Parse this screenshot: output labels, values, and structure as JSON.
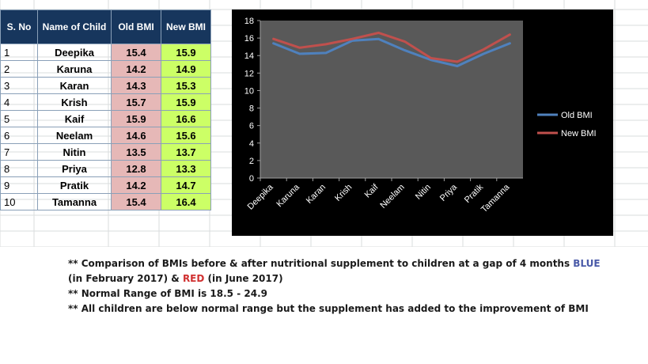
{
  "table": {
    "headers": [
      "S. No",
      "Name of Child",
      "Old BMI",
      "New BMI"
    ],
    "rows": [
      {
        "sno": "1",
        "name": "Deepika",
        "old": "15.4",
        "new": "15.9"
      },
      {
        "sno": "2",
        "name": "Karuna",
        "old": "14.2",
        "new": "14.9"
      },
      {
        "sno": "3",
        "name": "Karan",
        "old": "14.3",
        "new": "15.3"
      },
      {
        "sno": "4",
        "name": "Krish",
        "old": "15.7",
        "new": "15.9"
      },
      {
        "sno": "5",
        "name": "Kaif",
        "old": "15.9",
        "new": "16.6"
      },
      {
        "sno": "6",
        "name": "Neelam",
        "old": "14.6",
        "new": "15.6"
      },
      {
        "sno": "7",
        "name": "Nitin",
        "old": "13.5",
        "new": "13.7"
      },
      {
        "sno": "8",
        "name": "Priya",
        "old": "12.8",
        "new": "13.3"
      },
      {
        "sno": "9",
        "name": "Pratik",
        "old": "14.2",
        "new": "14.7"
      },
      {
        "sno": "10",
        "name": "Tamanna",
        "old": "15.4",
        "new": "16.4"
      }
    ]
  },
  "chart_data": {
    "type": "line",
    "categories": [
      "Deepika",
      "Karuna",
      "Karan",
      "Krish",
      "Kaif",
      "Neelam",
      "Nitin",
      "Priya",
      "Pratik",
      "Tamanna"
    ],
    "series": [
      {
        "name": "Old BMI",
        "values": [
          15.4,
          14.2,
          14.3,
          15.7,
          15.9,
          14.6,
          13.5,
          12.8,
          14.2,
          15.4
        ],
        "color": "#4f81bd"
      },
      {
        "name": "New BMI",
        "values": [
          15.9,
          14.9,
          15.3,
          15.9,
          16.6,
          15.6,
          13.7,
          13.3,
          14.7,
          16.4
        ],
        "color": "#c0504d"
      }
    ],
    "ylim": [
      0,
      18
    ],
    "yticks": [
      0,
      2,
      4,
      6,
      8,
      10,
      12,
      14,
      16,
      18
    ],
    "legend": "right",
    "grid": false,
    "plot_background": "#595959",
    "background": "#000000"
  },
  "notes": {
    "line1_a": "** Comparison of BMIs before & after nutritional supplement to children at a gap of 4 months ",
    "line1_blue": "BLUE",
    "line2_a": "(in February 2017) & ",
    "line2_red": "RED",
    "line2_b": " (in June 2017)",
    "line3": "** Normal Range of BMI is 18.5 - 24.9",
    "line4": "** All children are below normal range but the supplement has added to the improvement of BMI"
  }
}
